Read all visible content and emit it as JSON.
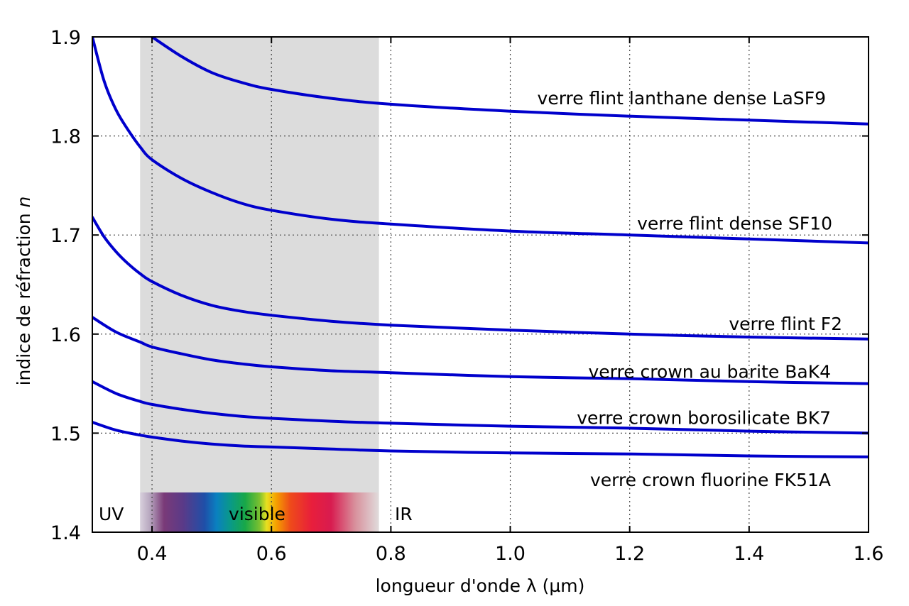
{
  "chart_data": {
    "type": "line",
    "title": "",
    "xlabel": "longueur d'onde λ (µm)",
    "ylabel": "indice de réfraction",
    "ylabel_symbol": "n",
    "xlim": [
      0.3,
      1.6
    ],
    "ylim": [
      1.4,
      1.9
    ],
    "x_ticks": [
      "0.4",
      "0.6",
      "0.8",
      "1.0",
      "1.2",
      "1.4",
      "1.6"
    ],
    "y_ticks": [
      "1.4",
      "1.5",
      "1.6",
      "1.7",
      "1.8",
      "1.9"
    ],
    "grid": true,
    "line_color": "#0000cc",
    "visible_band": {
      "range": [
        0.38,
        0.78
      ],
      "color": "#dcdcdc",
      "label": "visible"
    },
    "region_labels": {
      "uv": "UV",
      "ir": "IR"
    },
    "series": [
      {
        "name": "verre flint lanthane dense LaSF9",
        "x": [
          0.4,
          0.45,
          0.5,
          0.55,
          0.6,
          0.7,
          0.8,
          1.0,
          1.2,
          1.4,
          1.6
        ],
        "y": [
          1.9,
          1.88,
          1.864,
          1.854,
          1.847,
          1.838,
          1.832,
          1.825,
          1.82,
          1.816,
          1.812
        ]
      },
      {
        "name": "verre flint dense SF10",
        "x": [
          0.3,
          0.32,
          0.34,
          0.36,
          0.38,
          0.4,
          0.45,
          0.5,
          0.55,
          0.6,
          0.7,
          0.8,
          1.0,
          1.2,
          1.4,
          1.6
        ],
        "y": [
          1.9,
          1.855,
          1.826,
          1.806,
          1.789,
          1.776,
          1.757,
          1.743,
          1.732,
          1.725,
          1.716,
          1.711,
          1.704,
          1.7,
          1.696,
          1.692
        ]
      },
      {
        "name": "verre flint F2",
        "x": [
          0.3,
          0.32,
          0.34,
          0.36,
          0.38,
          0.4,
          0.45,
          0.5,
          0.55,
          0.6,
          0.7,
          0.8,
          1.0,
          1.2,
          1.4,
          1.6
        ],
        "y": [
          1.718,
          1.698,
          1.683,
          1.671,
          1.661,
          1.653,
          1.639,
          1.629,
          1.623,
          1.619,
          1.613,
          1.609,
          1.604,
          1.6,
          1.597,
          1.595
        ]
      },
      {
        "name": "verre crown au barite BaK4",
        "x": [
          0.3,
          0.34,
          0.38,
          0.4,
          0.45,
          0.5,
          0.55,
          0.6,
          0.7,
          0.8,
          1.0,
          1.2,
          1.4,
          1.6
        ],
        "y": [
          1.617,
          1.602,
          1.592,
          1.587,
          1.58,
          1.574,
          1.57,
          1.567,
          1.563,
          1.561,
          1.557,
          1.555,
          1.552,
          1.55
        ]
      },
      {
        "name": "verre crown borosilicate BK7",
        "x": [
          0.3,
          0.34,
          0.38,
          0.4,
          0.45,
          0.5,
          0.55,
          0.6,
          0.7,
          0.8,
          1.0,
          1.2,
          1.4,
          1.6
        ],
        "y": [
          1.552,
          1.54,
          1.532,
          1.529,
          1.524,
          1.52,
          1.517,
          1.515,
          1.512,
          1.51,
          1.507,
          1.505,
          1.502,
          1.5
        ]
      },
      {
        "name": "verre crown fluorine FK51A",
        "x": [
          0.3,
          0.34,
          0.38,
          0.4,
          0.45,
          0.5,
          0.55,
          0.6,
          0.7,
          0.8,
          1.0,
          1.2,
          1.4,
          1.6
        ],
        "y": [
          1.511,
          1.503,
          1.498,
          1.496,
          1.492,
          1.489,
          1.487,
          1.486,
          1.484,
          1.482,
          1.48,
          1.479,
          1.477,
          1.476
        ]
      }
    ]
  }
}
